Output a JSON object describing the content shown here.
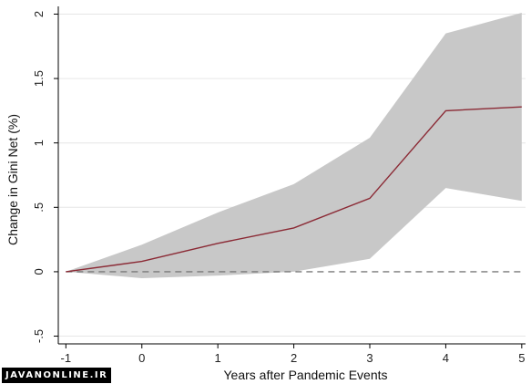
{
  "chart_data": {
    "type": "line",
    "title": "",
    "xlabel": "Years after Pandemic Events",
    "ylabel": "Change in Gini Net (%)",
    "x": [
      -1,
      0,
      1,
      2,
      3,
      4,
      5
    ],
    "xticks": [
      "-1",
      "0",
      "1",
      "2",
      "3",
      "4",
      "5"
    ],
    "yticks": [
      {
        "value": -0.5,
        "label": "-.5"
      },
      {
        "value": 0,
        "label": "0"
      },
      {
        "value": 0.5,
        "label": ".5"
      },
      {
        "value": 1,
        "label": "1"
      },
      {
        "value": 1.5,
        "label": "1.5"
      },
      {
        "value": 2,
        "label": "2"
      }
    ],
    "xlim": [
      -1.1,
      5.05
    ],
    "ylim": [
      -0.56,
      2.06
    ],
    "grid": true,
    "series": [
      {
        "values": [
          0,
          0.08,
          0.22,
          0.34,
          0.57,
          1.25,
          1.28
        ],
        "color": "#8b2a35"
      }
    ],
    "band": {
      "upper": [
        0,
        0.21,
        0.46,
        0.68,
        1.04,
        1.85,
        2.01
      ],
      "lower": [
        0,
        -0.05,
        -0.03,
        0.0,
        0.1,
        0.65,
        0.55
      ],
      "color": "#c8c8c8"
    },
    "reference_line": {
      "y": 0,
      "style": "dashed",
      "color": "#7a7a7a"
    }
  },
  "watermark": "JAVANONLINE.IR"
}
